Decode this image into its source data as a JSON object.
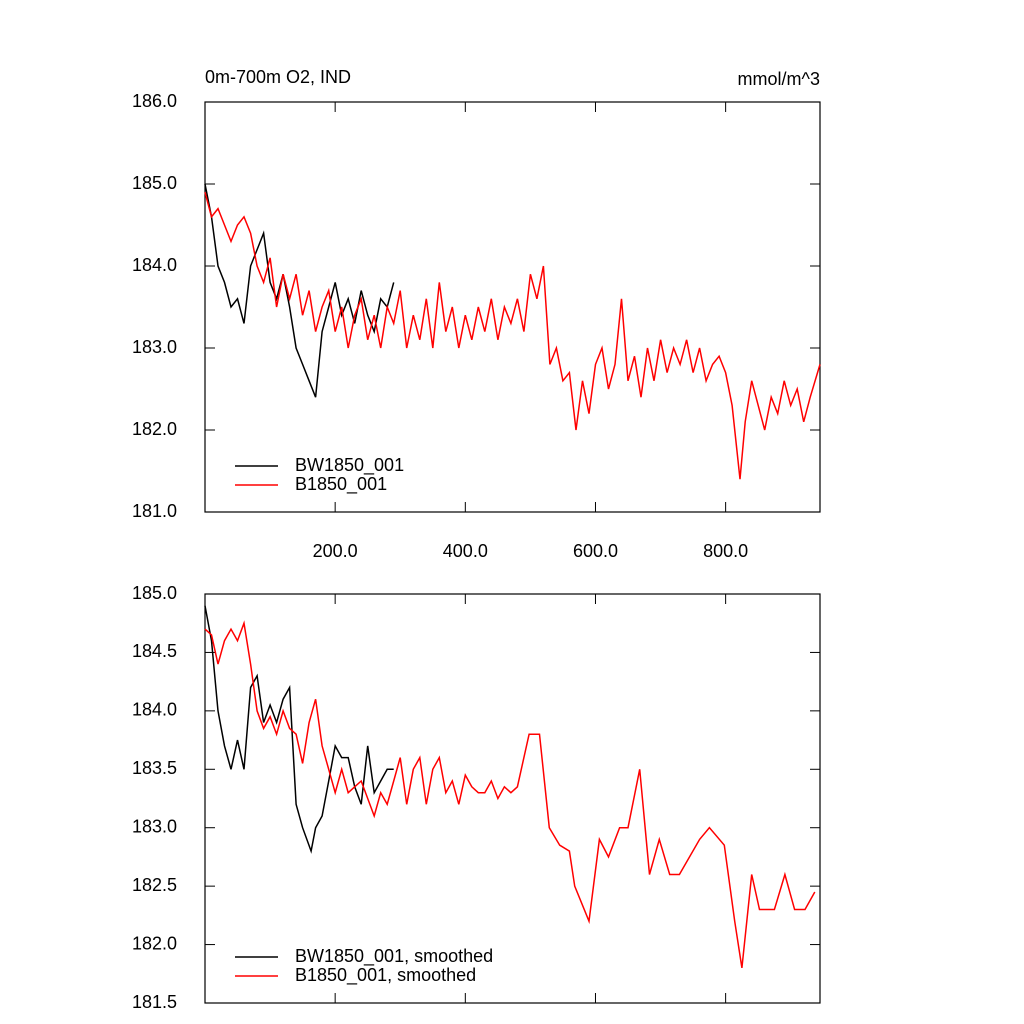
{
  "chart_data": [
    {
      "type": "line",
      "title": "0m-700m O2, IND",
      "subtitle": "mmol/m^3",
      "xlim": [
        0,
        945
      ],
      "ylim": [
        181,
        186
      ],
      "xticks": [
        {
          "value": 200,
          "label": "200.0"
        },
        {
          "value": 400,
          "label": "400.0"
        },
        {
          "value": 600,
          "label": "600.0"
        },
        {
          "value": 800,
          "label": "800.0"
        }
      ],
      "yticks": [
        {
          "value": 181,
          "label": "181.0"
        },
        {
          "value": 182,
          "label": "182.0"
        },
        {
          "value": 183,
          "label": "183.0"
        },
        {
          "value": 184,
          "label": "184.0"
        },
        {
          "value": 185,
          "label": "185.0"
        },
        {
          "value": 186,
          "label": "186.0"
        }
      ],
      "legend": "lower left",
      "series": [
        {
          "name": "BW1850_001",
          "color": "#000000",
          "x": [
            0,
            10,
            20,
            30,
            40,
            50,
            60,
            70,
            80,
            90,
            100,
            110,
            120,
            130,
            140,
            150,
            160,
            170,
            180,
            190,
            200,
            210,
            220,
            230,
            240,
            250,
            260,
            270,
            280,
            290
          ],
          "values": [
            185.0,
            184.6,
            184.0,
            183.8,
            183.5,
            183.6,
            183.3,
            184.0,
            184.2,
            184.4,
            183.8,
            183.6,
            183.9,
            183.5,
            183.0,
            182.8,
            182.6,
            182.4,
            183.2,
            183.5,
            183.8,
            183.4,
            183.6,
            183.3,
            183.7,
            183.4,
            183.2,
            183.6,
            183.5,
            183.8
          ]
        },
        {
          "name": "B1850_001",
          "color": "#ff0000",
          "x": [
            0,
            10,
            20,
            30,
            40,
            50,
            60,
            70,
            80,
            90,
            100,
            110,
            120,
            130,
            140,
            150,
            160,
            170,
            180,
            190,
            200,
            210,
            220,
            230,
            240,
            250,
            260,
            270,
            280,
            290,
            300,
            310,
            320,
            330,
            340,
            350,
            360,
            370,
            380,
            390,
            400,
            410,
            420,
            430,
            440,
            450,
            460,
            470,
            480,
            490,
            500,
            510,
            520,
            530,
            540,
            550,
            560,
            570,
            580,
            590,
            600,
            610,
            620,
            630,
            640,
            650,
            660,
            670,
            680,
            690,
            700,
            710,
            720,
            730,
            740,
            750,
            760,
            770,
            780,
            790,
            800,
            810,
            822,
            830,
            840,
            850,
            860,
            870,
            880,
            890,
            900,
            910,
            920,
            930,
            945
          ],
          "values": [
            184.9,
            184.6,
            184.7,
            184.5,
            184.3,
            184.5,
            184.6,
            184.4,
            184.0,
            183.8,
            184.1,
            183.5,
            183.9,
            183.6,
            183.9,
            183.4,
            183.7,
            183.2,
            183.5,
            183.7,
            183.2,
            183.5,
            183.0,
            183.4,
            183.6,
            183.1,
            183.4,
            183.0,
            183.5,
            183.3,
            183.7,
            183.0,
            183.4,
            183.1,
            183.6,
            183.0,
            183.8,
            183.2,
            183.5,
            183.0,
            183.4,
            183.1,
            183.5,
            183.2,
            183.6,
            183.1,
            183.5,
            183.3,
            183.6,
            183.2,
            183.9,
            183.6,
            184.0,
            182.8,
            183.0,
            182.6,
            182.7,
            182.0,
            182.6,
            182.2,
            182.8,
            183.0,
            182.5,
            182.8,
            183.6,
            182.6,
            182.9,
            182.4,
            183.0,
            182.6,
            183.1,
            182.7,
            183.0,
            182.8,
            183.1,
            182.7,
            183.0,
            182.6,
            182.8,
            182.9,
            182.7,
            182.3,
            181.4,
            182.1,
            182.6,
            182.3,
            182.0,
            182.4,
            182.2,
            182.6,
            182.3,
            182.5,
            182.1,
            182.4,
            182.8
          ]
        }
      ]
    },
    {
      "type": "line",
      "xlim": [
        0,
        945
      ],
      "ylim": [
        181.5,
        185
      ],
      "xticks": [
        200,
        400,
        600,
        800
      ],
      "yticks": [
        {
          "value": 181.5,
          "label": "181.5"
        },
        {
          "value": 182,
          "label": "182.0"
        },
        {
          "value": 182.5,
          "label": "182.5"
        },
        {
          "value": 183,
          "label": "183.0"
        },
        {
          "value": 183.5,
          "label": "183.5"
        },
        {
          "value": 184,
          "label": "184.0"
        },
        {
          "value": 184.5,
          "label": "184.5"
        },
        {
          "value": 185,
          "label": "185.0"
        }
      ],
      "legend": "lower left",
      "series": [
        {
          "name": "BW1850_001, smoothed",
          "color": "#000000",
          "x": [
            0,
            10,
            20,
            30,
            40,
            50,
            60,
            70,
            80,
            90,
            100,
            110,
            120,
            130,
            140,
            150,
            163,
            170,
            180,
            190,
            200,
            210,
            220,
            230,
            240,
            250,
            260,
            270,
            280,
            290
          ],
          "values": [
            184.9,
            184.6,
            184.0,
            183.7,
            183.5,
            183.75,
            183.5,
            184.2,
            184.3,
            183.9,
            184.05,
            183.9,
            184.1,
            184.2,
            183.2,
            183.0,
            182.8,
            183.0,
            183.1,
            183.4,
            183.7,
            183.6,
            183.6,
            183.35,
            183.2,
            183.7,
            183.3,
            183.4,
            183.5,
            183.5
          ]
        },
        {
          "name": "B1850_001, smoothed",
          "color": "#ff0000",
          "x": [
            0,
            10,
            20,
            30,
            40,
            50,
            60,
            70,
            80,
            90,
            100,
            110,
            120,
            130,
            140,
            150,
            160,
            170,
            180,
            190,
            200,
            210,
            220,
            230,
            240,
            250,
            260,
            270,
            280,
            290,
            300,
            310,
            320,
            330,
            340,
            350,
            360,
            370,
            380,
            390,
            400,
            410,
            420,
            430,
            440,
            450,
            460,
            470,
            480,
            498,
            514,
            529,
            545,
            560,
            568,
            590,
            606,
            620,
            637,
            650,
            668,
            683,
            698,
            714,
            729,
            760,
            775,
            798,
            814,
            825,
            840,
            852,
            875,
            891,
            906,
            922,
            937
          ],
          "values": [
            184.7,
            184.65,
            184.4,
            184.6,
            184.7,
            184.6,
            184.75,
            184.4,
            184.0,
            183.85,
            183.95,
            183.8,
            184.0,
            183.85,
            183.8,
            183.55,
            183.9,
            184.1,
            183.7,
            183.5,
            183.3,
            183.5,
            183.3,
            183.35,
            183.4,
            183.25,
            183.1,
            183.3,
            183.2,
            183.4,
            183.6,
            183.2,
            183.5,
            183.6,
            183.2,
            183.5,
            183.6,
            183.3,
            183.4,
            183.2,
            183.45,
            183.35,
            183.3,
            183.3,
            183.4,
            183.25,
            183.35,
            183.3,
            183.35,
            183.8,
            183.8,
            183.0,
            182.85,
            182.8,
            182.5,
            182.2,
            182.9,
            182.75,
            183.0,
            183.0,
            183.5,
            182.6,
            182.9,
            182.6,
            182.6,
            182.9,
            183.0,
            182.85,
            182.2,
            181.8,
            182.6,
            182.3,
            182.3,
            182.6,
            182.3,
            182.3,
            182.45
          ]
        }
      ]
    }
  ]
}
